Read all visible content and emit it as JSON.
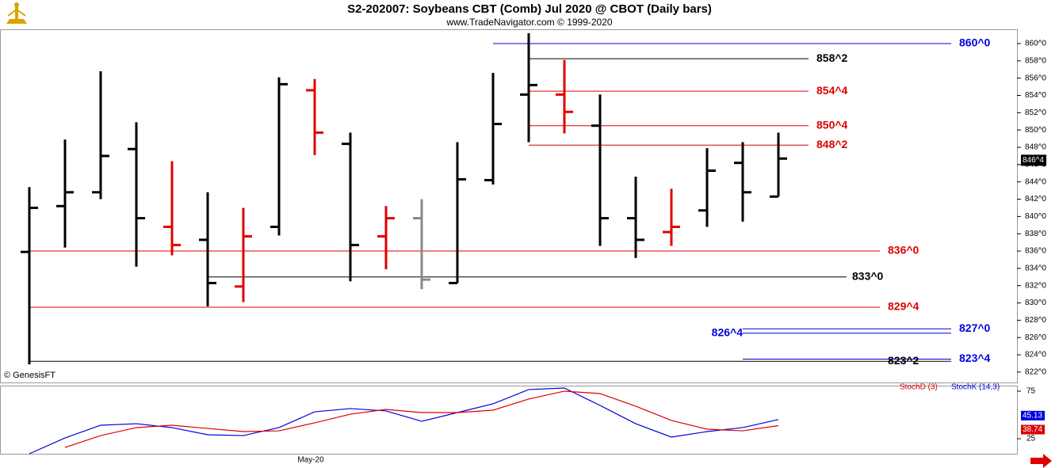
{
  "title": "S2-202007:  Soybeans CBT (Comb) Jul 2020 @ CBOT  (Daily bars)",
  "subtitle": "www.TradeNavigator.com © 1999-2020",
  "credit": "© GenesisFT",
  "chart_data": [
    {
      "type": "ohlc",
      "open": [
        835.9,
        841.2,
        842.8,
        847.8,
        838.8,
        837.3,
        831.9,
        838.8,
        854.6,
        848.4,
        837.7,
        839.8,
        832.3,
        844.2,
        854.1,
        854.1,
        850.5,
        839.8,
        838.2,
        840.7,
        846.2,
        842.3
      ],
      "high": [
        843.4,
        848.9,
        856.8,
        850.9,
        846.4,
        842.8,
        841.0,
        856.1,
        855.9,
        849.7,
        841.2,
        842.0,
        848.6,
        856.6,
        861.2,
        858.1,
        854.1,
        844.6,
        843.2,
        847.9,
        848.6,
        849.7
      ],
      "low": [
        822.9,
        836.4,
        842.0,
        834.2,
        835.5,
        829.6,
        830.1,
        837.8,
        847.1,
        832.5,
        833.9,
        831.6,
        832.3,
        843.7,
        848.6,
        849.6,
        836.6,
        835.2,
        836.6,
        838.8,
        839.4,
        842.3
      ],
      "close": [
        841.0,
        842.8,
        847.0,
        839.8,
        836.7,
        832.3,
        837.7,
        855.3,
        849.7,
        836.7,
        839.8,
        832.7,
        844.3,
        850.7,
        855.2,
        852.1,
        839.8,
        837.3,
        838.8,
        845.3,
        842.8,
        846.7
      ],
      "bar_colors": [
        "#000000",
        "#000000",
        "#000000",
        "#000000",
        "#e00000",
        "#000000",
        "#e00000",
        "#000000",
        "#e00000",
        "#000000",
        "#e00000",
        "#888888",
        "#000000",
        "#000000",
        "#000000",
        "#e00000",
        "#000000",
        "#000000",
        "#e00000",
        "#000000",
        "#000000",
        "#000000"
      ],
      "ylim": [
        820.8,
        861.65
      ],
      "yticks": [
        {
          "value": 822,
          "label": "822^0"
        },
        {
          "value": 824,
          "label": "824^0"
        },
        {
          "value": 826,
          "label": "826^0"
        },
        {
          "value": 828,
          "label": "828^0"
        },
        {
          "value": 830,
          "label": "830^0"
        },
        {
          "value": 832,
          "label": "832^0"
        },
        {
          "value": 834,
          "label": "834^0"
        },
        {
          "value": 836,
          "label": "836^0"
        },
        {
          "value": 838,
          "label": "838^0"
        },
        {
          "value": 840,
          "label": "840^0"
        },
        {
          "value": 842,
          "label": "842^0"
        },
        {
          "value": 844,
          "label": "844^0"
        },
        {
          "value": 846,
          "label": "846^0"
        },
        {
          "value": 848,
          "label": "848^0"
        },
        {
          "value": 850,
          "label": "850^0"
        },
        {
          "value": 852,
          "label": "852^0"
        },
        {
          "value": 854,
          "label": "854^0"
        },
        {
          "value": 856,
          "label": "856^0"
        },
        {
          "value": 858,
          "label": "858^0"
        },
        {
          "value": 860,
          "label": "860^0"
        }
      ],
      "levels": [
        {
          "value": 860,
          "label": "860^0",
          "color": "#0000dd"
        },
        {
          "value": 858.25,
          "label": "858^2",
          "color": "#000000"
        },
        {
          "value": 854.5,
          "label": "854^4",
          "color": "#dd0000"
        },
        {
          "value": 850.5,
          "label": "850^4",
          "color": "#dd0000"
        },
        {
          "value": 848.25,
          "label": "848^2",
          "color": "#dd0000"
        },
        {
          "value": 836,
          "label": "836^0",
          "color": "#dd0000"
        },
        {
          "value": 833,
          "label": "833^0",
          "color": "#000000"
        },
        {
          "value": 829.5,
          "label": "829^4",
          "color": "#dd0000"
        },
        {
          "value": 827,
          "label": "827^0",
          "color": "#0000dd"
        },
        {
          "value": 826.5,
          "label": "826^4",
          "color": "#0000dd"
        },
        {
          "value": 823.5,
          "label": "823^4",
          "color": "#0000dd"
        },
        {
          "value": 823.25,
          "label": "823^2",
          "color": "#000000"
        }
      ],
      "last_price": {
        "value": 846.5,
        "label": "846^4"
      }
    },
    {
      "type": "line",
      "categories": [
        null,
        null,
        null,
        null,
        null,
        null,
        null,
        null,
        "May-20",
        null,
        null,
        null,
        null,
        null,
        null,
        null,
        null,
        null,
        null,
        null,
        null,
        null
      ],
      "series": [
        {
          "name": "StochK (14,3)",
          "color": "#0000dd",
          "values": [
            9.2,
            25.8,
            39.2,
            40.8,
            36.7,
            29.2,
            28.3,
            36.7,
            53.3,
            56.7,
            54.2,
            43.3,
            52.5,
            61.7,
            76.7,
            78.3,
            60,
            40.8,
            26.7,
            32.5,
            36.7,
            45.13
          ]
        },
        {
          "name": "StochD (3)",
          "color": "#dd0000",
          "values": [
            null,
            15.8,
            28.3,
            36.7,
            39.2,
            35.8,
            32.5,
            33.3,
            41.7,
            50.8,
            55.8,
            52.5,
            52.5,
            55,
            66.7,
            75,
            72.5,
            59.2,
            44.2,
            35,
            33.3,
            38.74
          ]
        }
      ],
      "ylim": [
        9.2,
        80.8
      ],
      "yticks": [
        25,
        75
      ]
    }
  ]
}
